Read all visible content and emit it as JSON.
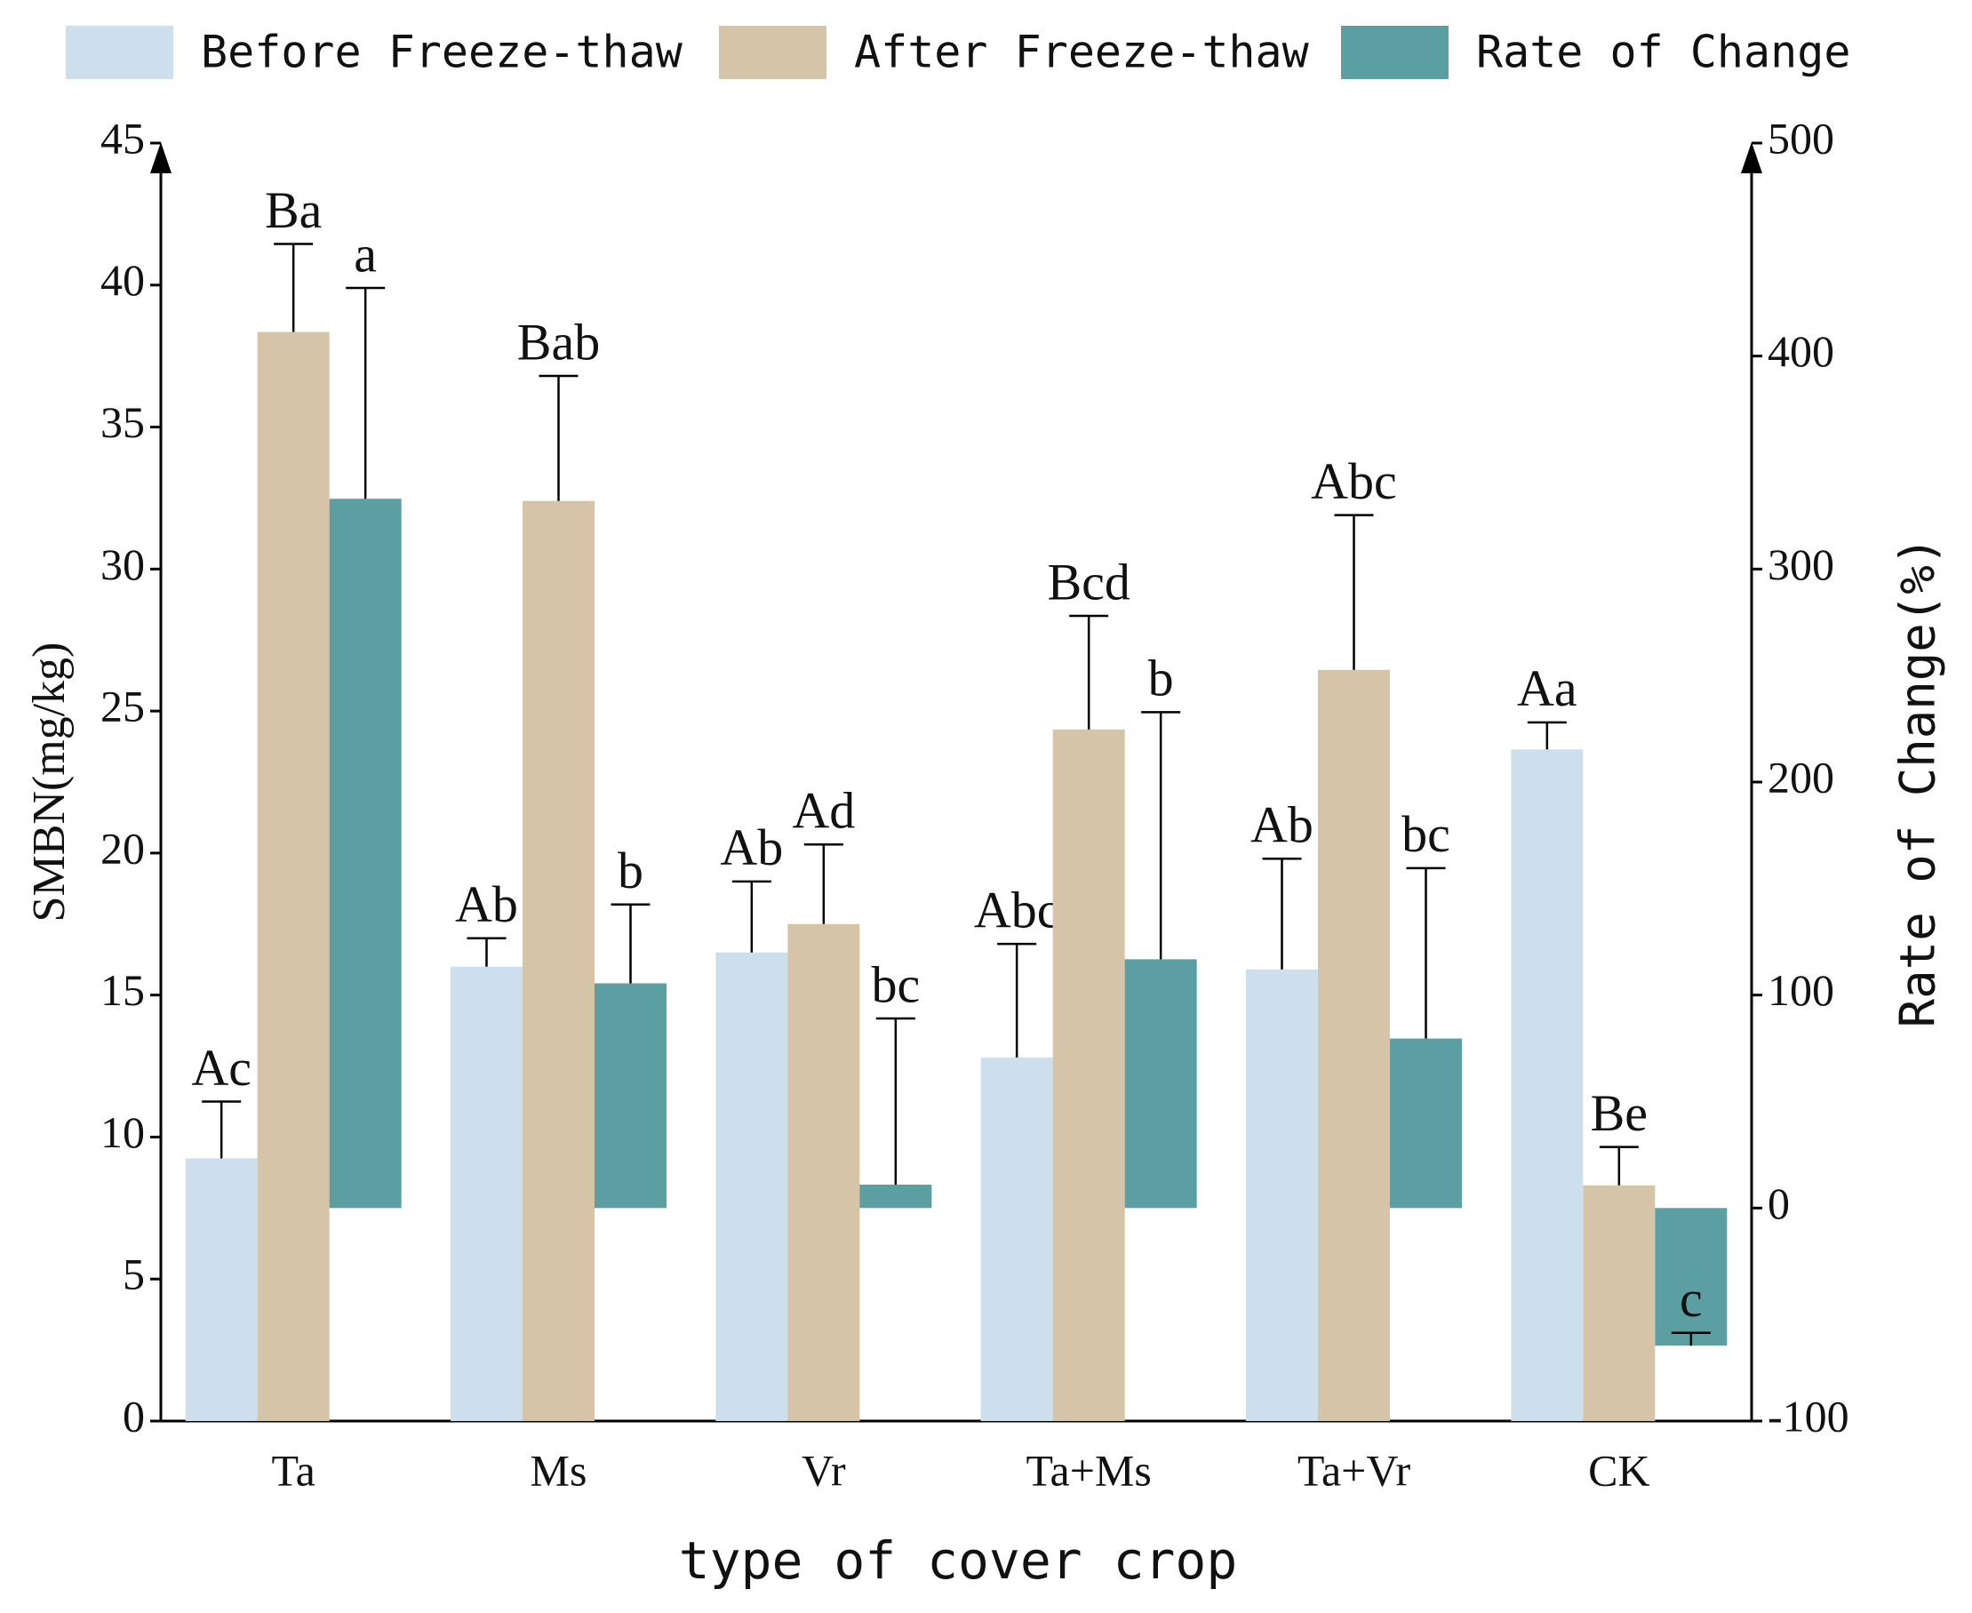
{
  "chart_data": {
    "type": "bar",
    "x_label": "type of cover crop",
    "y_label": "SMBN(mg/kg)",
    "y2_label": "Rate of Change(%)",
    "categories": [
      "Ta",
      "Ms",
      "Vr",
      "Ta+Ms",
      "Ta+Vr",
      "CK"
    ],
    "ylim": [
      0,
      45
    ],
    "yticks": [
      0,
      5,
      10,
      15,
      20,
      25,
      30,
      35,
      40,
      45
    ],
    "y2lim": [
      -100,
      500
    ],
    "y2ticks": [
      -100,
      0,
      100,
      200,
      300,
      400,
      500
    ],
    "series": [
      {
        "name": "Before Freeze-thaw",
        "color": "#cddfec",
        "values": [
          9.25,
          16.0,
          16.5,
          12.8,
          15.9,
          23.65
        ],
        "errors": [
          2.0,
          1.0,
          2.5,
          4.0,
          3.9,
          0.95
        ],
        "letters": [
          "Ac",
          "Ab",
          "Ab",
          "Abc",
          "Ab",
          "Aa"
        ]
      },
      {
        "name": "After Freeze-thaw",
        "color": "#d5c4a7",
        "values": [
          38.35,
          32.4,
          17.5,
          24.35,
          26.45,
          8.3
        ],
        "errors": [
          3.1,
          4.4,
          2.8,
          4.0,
          5.45,
          1.35
        ],
        "letters": [
          "Ba",
          "Bab",
          "Ad",
          "Bcd",
          "Abc",
          "Be"
        ]
      },
      {
        "name": "Rate of Change",
        "color": "#5b9fa2",
        "axis": "y2",
        "values": [
          333,
          105.5,
          11,
          116.8,
          79.6,
          -64.6
        ],
        "errors": [
          99,
          37,
          78,
          116,
          80,
          6
        ],
        "letters": [
          "a",
          "b",
          "bc",
          "b",
          "bc",
          "c"
        ]
      }
    ]
  }
}
